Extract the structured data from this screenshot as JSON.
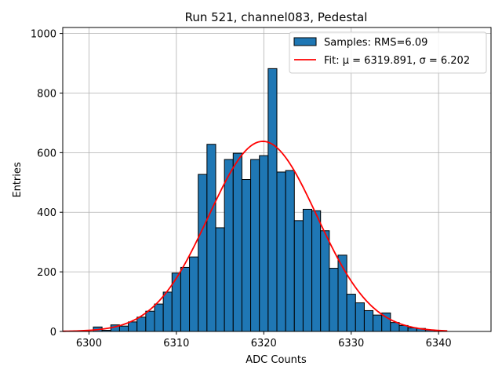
{
  "chart_data": {
    "type": "bar",
    "title": "Run 521, channel083, Pedestal",
    "xlabel": "ADC Counts",
    "ylabel": "Entries",
    "xlim": [
      6297,
      6346
    ],
    "ylim": [
      0,
      1020
    ],
    "xticks": [
      6300,
      6310,
      6320,
      6330,
      6340
    ],
    "yticks": [
      0,
      200,
      400,
      600,
      800,
      1000
    ],
    "grid": true,
    "legend_position": "top-right",
    "colors": {
      "bars": "#1f77b4",
      "bar_edge": "#000000",
      "fit": "#ff0000"
    },
    "histogram": {
      "name": "Samples: RMS=6.09",
      "bin_width": 1,
      "bins": [
        {
          "x": 6301,
          "count": 15
        },
        {
          "x": 6302,
          "count": 4
        },
        {
          "x": 6303,
          "count": 22
        },
        {
          "x": 6304,
          "count": 18
        },
        {
          "x": 6305,
          "count": 32
        },
        {
          "x": 6306,
          "count": 48
        },
        {
          "x": 6307,
          "count": 68
        },
        {
          "x": 6308,
          "count": 92
        },
        {
          "x": 6309,
          "count": 132
        },
        {
          "x": 6310,
          "count": 196
        },
        {
          "x": 6311,
          "count": 215
        },
        {
          "x": 6312,
          "count": 250
        },
        {
          "x": 6313,
          "count": 527
        },
        {
          "x": 6314,
          "count": 628
        },
        {
          "x": 6315,
          "count": 348
        },
        {
          "x": 6316,
          "count": 577
        },
        {
          "x": 6317,
          "count": 598
        },
        {
          "x": 6318,
          "count": 510
        },
        {
          "x": 6319,
          "count": 577
        },
        {
          "x": 6320,
          "count": 590
        },
        {
          "x": 6321,
          "count": 882
        },
        {
          "x": 6322,
          "count": 535
        },
        {
          "x": 6323,
          "count": 540
        },
        {
          "x": 6324,
          "count": 372
        },
        {
          "x": 6325,
          "count": 410
        },
        {
          "x": 6326,
          "count": 405
        },
        {
          "x": 6327,
          "count": 338
        },
        {
          "x": 6328,
          "count": 212
        },
        {
          "x": 6329,
          "count": 256
        },
        {
          "x": 6330,
          "count": 125
        },
        {
          "x": 6331,
          "count": 96
        },
        {
          "x": 6332,
          "count": 70
        },
        {
          "x": 6333,
          "count": 55
        },
        {
          "x": 6334,
          "count": 62
        },
        {
          "x": 6335,
          "count": 30
        },
        {
          "x": 6336,
          "count": 20
        },
        {
          "x": 6337,
          "count": 12
        },
        {
          "x": 6338,
          "count": 10
        },
        {
          "x": 6339,
          "count": 5
        },
        {
          "x": 6340,
          "count": 3
        }
      ]
    },
    "fit": {
      "name": "Fit: μ = 6319.891, σ = 6.202",
      "mu": 6319.891,
      "sigma": 6.202,
      "amplitude": 638,
      "x_range": [
        6297,
        6341
      ]
    }
  }
}
